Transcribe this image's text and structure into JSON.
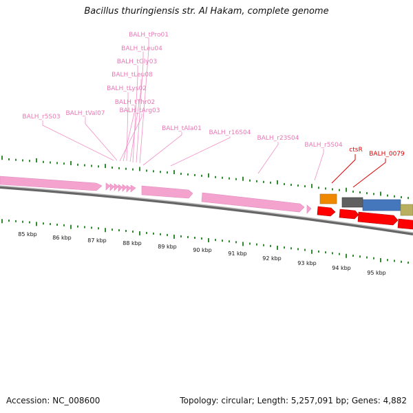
{
  "title": "Bacillus thuringiensis str. Al Hakam, complete genome",
  "footer": {
    "accession": "Accession: NC_008600",
    "summary": "Topology: circular; Length: 5,257,091 bp; Genes: 4,882"
  },
  "colors": {
    "rna": "#f4a3cf",
    "rna_label": "#e877b4",
    "gene_label": "#dd0000",
    "gene_red": "#ff0000",
    "gene_orange": "#ee8800",
    "gene_gray": "#606060",
    "gene_blue": "#4477bb",
    "gene_olive": "#b8b060",
    "ticks": "#2e8b2e",
    "backbone": "#888888"
  },
  "rna_labels": [
    "BALH_tPro01",
    "BALH_tLeu04",
    "BALH_tGly03",
    "BALH_tLeu08",
    "BALH_tLys02",
    "BALH_tThr02",
    "BALH_tArg03",
    "BALH_r5S03",
    "BALH_tVal07",
    "BALH_tAla01",
    "BALH_r16S04",
    "BALH_r23S04",
    "BALH_r5S04"
  ],
  "gene_labels": [
    "ctsR",
    "BALH_0079"
  ],
  "kbp_labels": [
    "85 kbp",
    "86 kbp",
    "87 kbp",
    "88 kbp",
    "89 kbp",
    "90 kbp",
    "91 kbp",
    "92 kbp",
    "93 kbp",
    "94 kbp",
    "95 kbp"
  ]
}
